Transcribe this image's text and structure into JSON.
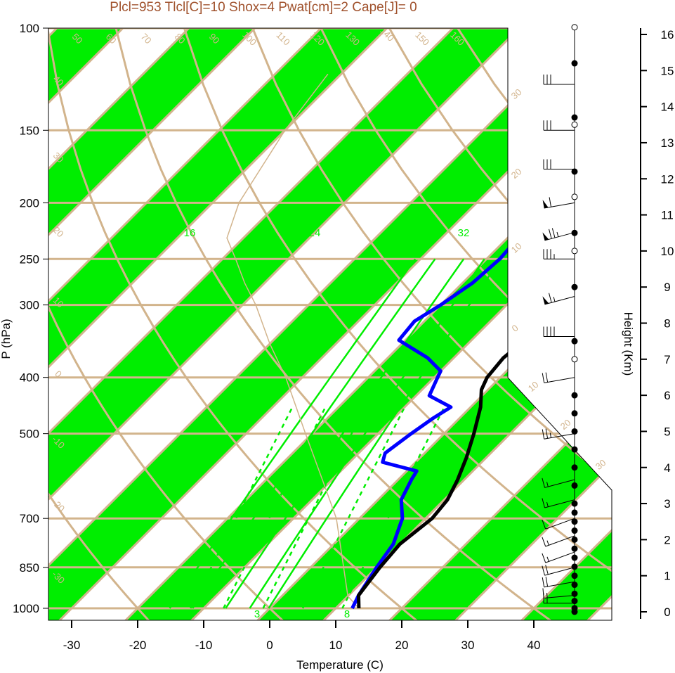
{
  "chart_data": {
    "type": "line",
    "title": "Plcl=953 Tlcl[C]=10 Shox=4 Pwat[cm]=2 Cape[J]= 0",
    "xlabel": "Temperature (C)",
    "ylabel": "P (hPa)",
    "y2label": "Height (Km)",
    "x_ticks": [
      "-30",
      "-20",
      "-10",
      "0",
      "10",
      "20",
      "30",
      "40"
    ],
    "pressure_ticks": [
      "100",
      "150",
      "200",
      "250",
      "300",
      "400",
      "500",
      "700",
      "850",
      "1000"
    ],
    "height_ticks": [
      "0",
      "1",
      "2",
      "3",
      "4",
      "5",
      "6",
      "7",
      "8",
      "9",
      "10",
      "11",
      "12",
      "13",
      "14",
      "15",
      "16"
    ],
    "mixing_ratio_labels": [
      "12",
      "16",
      "24",
      "32"
    ],
    "wetbulb_labels": [
      "3",
      "8"
    ],
    "skewed_isotherm_labels": [
      "50",
      "60",
      "70",
      "80",
      "90",
      "100",
      "110",
      "120",
      "130",
      "140",
      "150",
      "160"
    ],
    "adiabat_labels_left": [
      "40",
      "30",
      "20",
      "10",
      "0",
      "-10",
      "-20",
      "-30"
    ],
    "adiabat_labels_right": [
      "30",
      "20",
      "10",
      "0",
      "10",
      "20",
      "30"
    ],
    "temperature": [
      {
        "p": 1000,
        "t": 13.5
      },
      {
        "p": 950,
        "t": 11.5
      },
      {
        "p": 850,
        "t": 10.5
      },
      {
        "p": 775,
        "t": 10.0
      },
      {
        "p": 700,
        "t": 11.0
      },
      {
        "p": 650,
        "t": 10.5
      },
      {
        "p": 600,
        "t": 9.0
      },
      {
        "p": 550,
        "t": 7.0
      },
      {
        "p": 500,
        "t": 4.5
      },
      {
        "p": 450,
        "t": 1.5
      },
      {
        "p": 420,
        "t": -1.0
      },
      {
        "p": 400,
        "t": -2.0
      },
      {
        "p": 370,
        "t": -2.5
      },
      {
        "p": 350,
        "t": -2.0
      },
      {
        "p": 320,
        "t": -1.5
      },
      {
        "p": 300,
        "t": -1.0
      },
      {
        "p": 275,
        "t": -1.3
      },
      {
        "p": 250,
        "t": -2.0
      },
      {
        "p": 225,
        "t": -1.5
      },
      {
        "p": 200,
        "t": 0.5
      },
      {
        "p": 175,
        "t": 3.0
      },
      {
        "p": 150,
        "t": 6.5
      },
      {
        "p": 130,
        "t": 10.0
      },
      {
        "p": 120,
        "t": 12.0
      },
      {
        "p": 110,
        "t": 15.0
      },
      {
        "p": 105,
        "t": 17.0
      }
    ],
    "dewpoint": [
      {
        "p": 1000,
        "t": 12.5
      },
      {
        "p": 950,
        "t": 11.5
      },
      {
        "p": 850,
        "t": 10.0
      },
      {
        "p": 775,
        "t": 9.0
      },
      {
        "p": 700,
        "t": 6.5
      },
      {
        "p": 650,
        "t": 3.5
      },
      {
        "p": 600,
        "t": 2.0
      },
      {
        "p": 580,
        "t": 1.5
      },
      {
        "p": 560,
        "t": -5.0
      },
      {
        "p": 540,
        "t": -6.0
      },
      {
        "p": 500,
        "t": -5.0
      },
      {
        "p": 470,
        "t": -4.0
      },
      {
        "p": 450,
        "t": -3.0
      },
      {
        "p": 430,
        "t": -8.0
      },
      {
        "p": 400,
        "t": -9.5
      },
      {
        "p": 390,
        "t": -10.0
      },
      {
        "p": 370,
        "t": -14.0
      },
      {
        "p": 345,
        "t": -21.0
      },
      {
        "p": 320,
        "t": -21.5
      },
      {
        "p": 300,
        "t": -20.0
      },
      {
        "p": 275,
        "t": -18.5
      },
      {
        "p": 250,
        "t": -18.0
      },
      {
        "p": 225,
        "t": -18.5
      },
      {
        "p": 200,
        "t": -20.0
      },
      {
        "p": 185,
        "t": -22.5
      },
      {
        "p": 175,
        "t": -22.0
      },
      {
        "p": 150,
        "t": -19.0
      },
      {
        "p": 130,
        "t": -15.0
      },
      {
        "p": 110,
        "t": -10.0
      },
      {
        "p": 105,
        "t": -8.0
      }
    ],
    "parcel": [
      {
        "p": 1000,
        "t": 13.5
      },
      {
        "p": 953,
        "t": 10.0
      },
      {
        "p": 850,
        "t": 5.0
      },
      {
        "p": 700,
        "t": -3.5
      },
      {
        "p": 600,
        "t": -11.5
      },
      {
        "p": 500,
        "t": -21.0
      },
      {
        "p": 400,
        "t": -32.5
      },
      {
        "p": 350,
        "t": -40.0
      },
      {
        "p": 300,
        "t": -48.0
      },
      {
        "p": 275,
        "t": -53.0
      },
      {
        "p": 250,
        "t": -58.0
      },
      {
        "p": 230,
        "t": -62.5
      },
      {
        "p": 200,
        "t": -66.0
      },
      {
        "p": 150,
        "t": -70.0
      },
      {
        "p": 120,
        "t": -72.0
      }
    ],
    "wind_barbs": [
      {
        "p": 980,
        "dir": 270,
        "spd": 15
      },
      {
        "p": 950,
        "dir": 265,
        "spd": 15
      },
      {
        "p": 900,
        "dir": 260,
        "spd": 20
      },
      {
        "p": 850,
        "dir": 255,
        "spd": 20
      },
      {
        "p": 800,
        "dir": 250,
        "spd": 15
      },
      {
        "p": 750,
        "dir": 250,
        "spd": 15
      },
      {
        "p": 700,
        "dir": 250,
        "spd": 10
      },
      {
        "p": 650,
        "dir": 255,
        "spd": 15
      },
      {
        "p": 600,
        "dir": 255,
        "spd": 15
      },
      {
        "p": 500,
        "dir": 260,
        "spd": 25
      },
      {
        "p": 400,
        "dir": 260,
        "spd": 20
      },
      {
        "p": 340,
        "dir": 270,
        "spd": 40
      },
      {
        "p": 290,
        "dir": 255,
        "spd": 65
      },
      {
        "p": 250,
        "dir": 270,
        "spd": 35
      },
      {
        "p": 225,
        "dir": 255,
        "spd": 75
      },
      {
        "p": 200,
        "dir": 260,
        "spd": 60
      },
      {
        "p": 175,
        "dir": 270,
        "spd": 30
      },
      {
        "p": 150,
        "dir": 270,
        "spd": 30
      },
      {
        "p": 125,
        "dir": 270,
        "spd": 30
      }
    ],
    "profile_points": [
      {
        "h": 0.0,
        "filled": true
      },
      {
        "h": 0.1,
        "filled": true
      },
      {
        "h": 0.3,
        "filled": true
      },
      {
        "h": 0.5,
        "filled": true
      },
      {
        "h": 0.75,
        "filled": true
      },
      {
        "h": 1.0,
        "filled": true
      },
      {
        "h": 1.25,
        "filled": true
      },
      {
        "h": 1.5,
        "filled": true
      },
      {
        "h": 1.75,
        "filled": true
      },
      {
        "h": 2.0,
        "filled": true
      },
      {
        "h": 2.25,
        "filled": true
      },
      {
        "h": 2.5,
        "filled": true
      },
      {
        "h": 2.75,
        "filled": true
      },
      {
        "h": 3.0,
        "filled": true
      },
      {
        "h": 3.5,
        "filled": true
      },
      {
        "h": 4.0,
        "filled": true
      },
      {
        "h": 4.5,
        "filled": true
      },
      {
        "h": 5.0,
        "filled": true
      },
      {
        "h": 5.5,
        "filled": true
      },
      {
        "h": 6.0,
        "filled": true
      },
      {
        "h": 7.0,
        "filled": false
      },
      {
        "h": 7.5,
        "filled": true
      },
      {
        "h": 9.0,
        "filled": true
      },
      {
        "h": 10.0,
        "filled": false
      },
      {
        "h": 10.5,
        "filled": true
      },
      {
        "h": 11.5,
        "filled": false
      },
      {
        "h": 12.2,
        "filled": true
      },
      {
        "h": 13.5,
        "filled": false
      },
      {
        "h": 13.7,
        "filled": true
      },
      {
        "h": 15.2,
        "filled": true
      },
      {
        "h": 16.2,
        "filled": false
      }
    ],
    "colors": {
      "temperature": "#000000",
      "dewpoint": "#0000ff",
      "band": "#00ee00",
      "isolines": "#d2b48c",
      "title": "#a0522d"
    }
  }
}
